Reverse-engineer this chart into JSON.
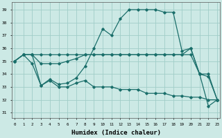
{
  "title": "",
  "xlabel": "Humidex (Indice chaleur)",
  "ylabel": "",
  "bg_color": "#cce9e5",
  "grid_color": "#a0cdc8",
  "line_color": "#1a6e6a",
  "x_ticks": [
    0,
    1,
    2,
    3,
    4,
    5,
    6,
    7,
    8,
    9,
    10,
    11,
    12,
    13,
    14,
    15,
    16,
    17,
    18,
    19,
    20,
    21,
    22,
    23
  ],
  "y_ticks": [
    31,
    32,
    33,
    34,
    35,
    36,
    37,
    38,
    39
  ],
  "ylim": [
    30.6,
    39.6
  ],
  "xlim": [
    -0.3,
    23.3
  ],
  "series": [
    {
      "x": [
        0,
        1,
        2,
        3,
        4,
        5,
        6,
        7,
        8,
        9,
        10,
        11,
        12,
        13,
        14,
        15,
        16,
        17,
        18,
        19,
        20,
        21,
        22,
        23
      ],
      "y": [
        35.0,
        35.5,
        35.5,
        33.1,
        33.6,
        33.2,
        33.3,
        33.7,
        34.6,
        36.0,
        37.5,
        37.0,
        38.3,
        39.0,
        39.0,
        39.0,
        39.0,
        38.8,
        38.8,
        35.8,
        36.0,
        34.0,
        31.5,
        32.0
      ]
    },
    {
      "x": [
        0,
        1,
        2,
        3,
        4,
        5,
        6,
        7,
        8,
        9,
        10,
        11,
        12,
        13,
        14,
        15,
        16,
        17,
        18,
        19,
        20,
        21,
        22,
        23
      ],
      "y": [
        35.0,
        35.5,
        35.5,
        34.8,
        34.8,
        34.8,
        35.0,
        35.2,
        35.5,
        35.5,
        35.5,
        35.5,
        35.5,
        35.5,
        35.5,
        35.5,
        35.5,
        35.5,
        35.5,
        35.5,
        36.0,
        34.0,
        34.0,
        32.0
      ]
    },
    {
      "x": [
        0,
        1,
        2,
        3,
        4,
        5,
        6,
        7,
        8,
        9,
        10,
        11,
        12,
        13,
        14,
        15,
        16,
        17,
        18,
        19,
        20,
        21,
        22,
        23
      ],
      "y": [
        35.0,
        35.5,
        35.5,
        35.5,
        35.5,
        35.5,
        35.5,
        35.5,
        35.5,
        35.5,
        35.5,
        35.5,
        35.5,
        35.5,
        35.5,
        35.5,
        35.5,
        35.5,
        35.5,
        35.5,
        35.5,
        34.0,
        33.8,
        32.0
      ]
    },
    {
      "x": [
        0,
        1,
        2,
        3,
        4,
        5,
        6,
        7,
        8,
        9,
        10,
        11,
        12,
        13,
        14,
        15,
        16,
        17,
        18,
        19,
        20,
        21,
        22,
        23
      ],
      "y": [
        35.0,
        35.5,
        34.8,
        33.1,
        33.5,
        33.0,
        33.0,
        33.3,
        33.5,
        33.0,
        33.0,
        33.0,
        32.8,
        32.8,
        32.8,
        32.5,
        32.5,
        32.5,
        32.3,
        32.3,
        32.2,
        32.2,
        32.0,
        32.0
      ]
    }
  ]
}
